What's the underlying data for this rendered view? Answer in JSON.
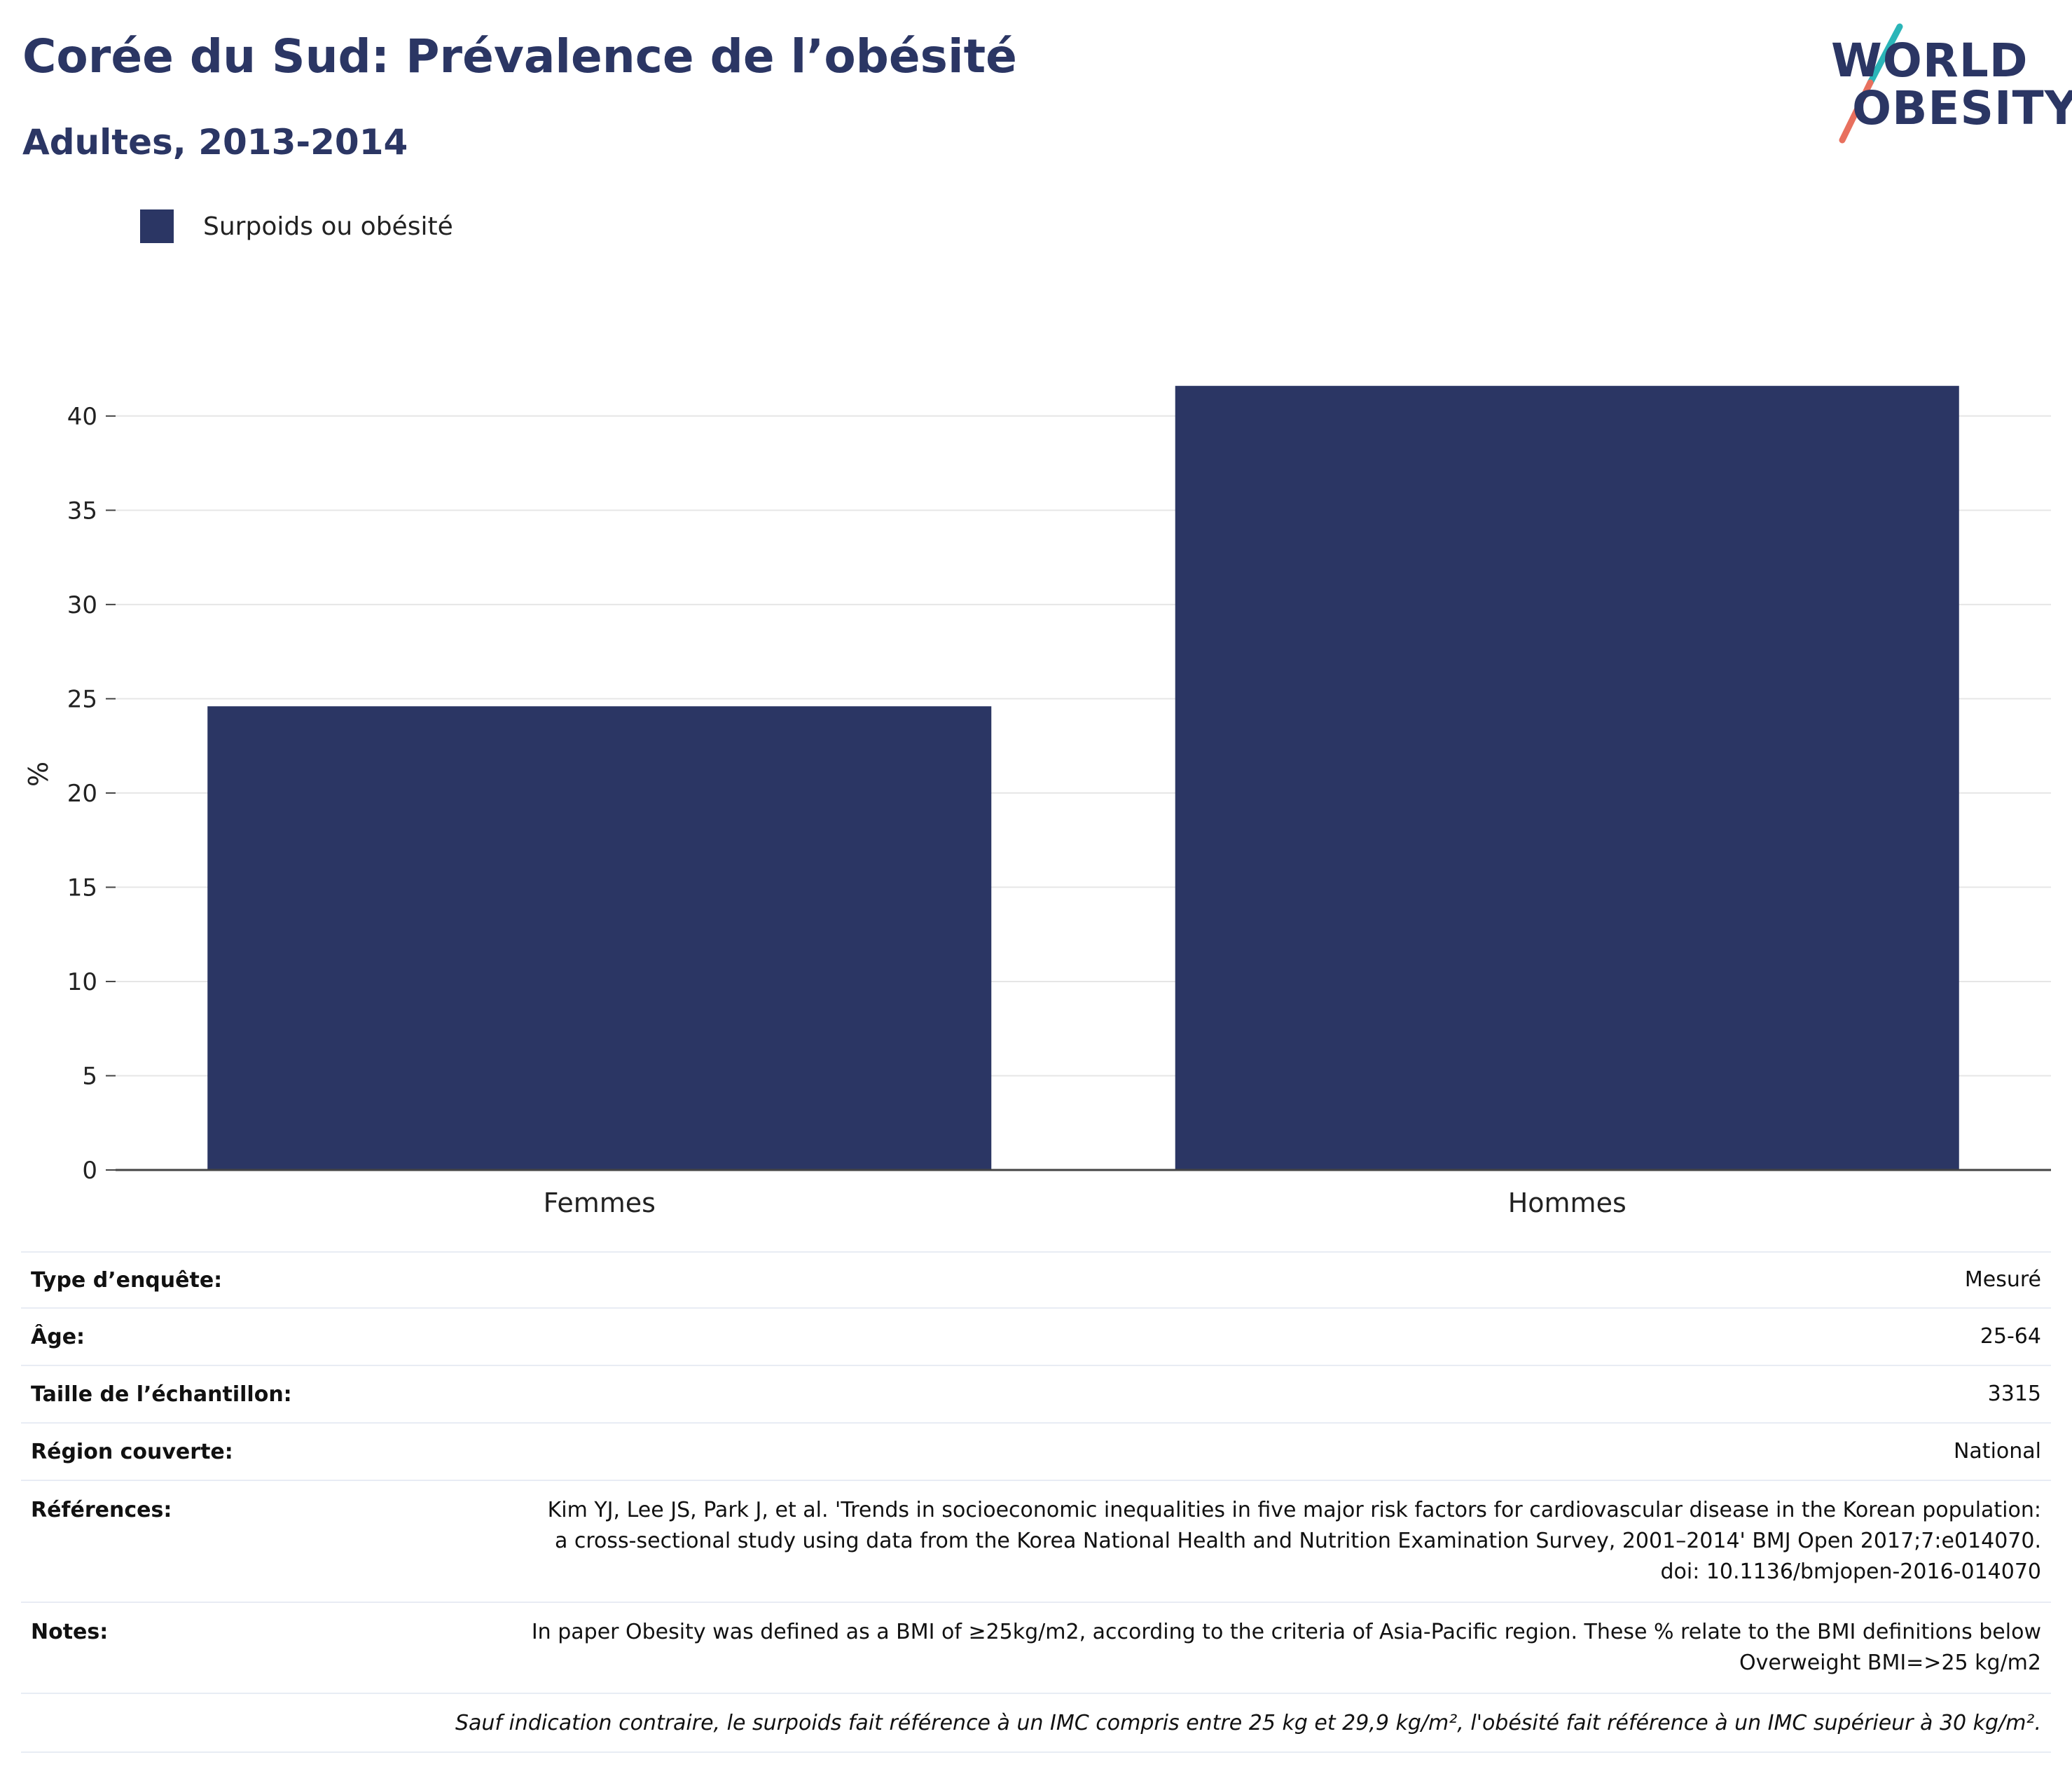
{
  "header": {
    "title": "Corée du Sud: Prévalence de l’obésité",
    "subtitle": "Adultes, 2013-2014"
  },
  "logo": {
    "line1": "WORLD",
    "line2": "OBESITY",
    "colors": {
      "text": "#2b3664",
      "slash_top": "#2bb5b8",
      "slash_bottom": "#e8705e"
    }
  },
  "colors": {
    "bar": "#2b3664",
    "grid": "#e6e6e6",
    "axis": "#444444",
    "text": "#2b3664"
  },
  "chart_data": {
    "type": "bar",
    "categories": [
      "Femmes",
      "Hommes"
    ],
    "series": [
      {
        "name": "Surpoids ou obésité",
        "values": [
          24.6,
          41.6
        ],
        "color": "#2b3664"
      }
    ],
    "ylabel": "%",
    "ylim": [
      0,
      42
    ],
    "yticks": [
      0,
      5,
      10,
      15,
      20,
      25,
      30,
      35,
      40
    ],
    "grid": true,
    "legend": "top-left"
  },
  "info": {
    "rows": [
      {
        "label": "Type d’enquête:",
        "value": "Mesuré"
      },
      {
        "label": "Âge:",
        "value": "25-64"
      },
      {
        "label": "Taille de l’échantillon:",
        "value": "3315"
      },
      {
        "label": "Région couverte:",
        "value": "National"
      }
    ],
    "references_label": "Références:",
    "references_value": "Kim YJ, Lee JS, Park J, et al. 'Trends in socioeconomic inequalities in five major risk factors for cardiovascular disease in the Korean population: a cross-sectional study using data from the Korea National Health and Nutrition Examination Survey, 2001–2014' BMJ Open 2017;7:e014070. doi: 10.1136/bmjopen-2016-014070",
    "notes_label": "Notes:",
    "notes_value": "In paper Obesity was defined as a BMI of ≥25kg/m2, according to the criteria of Asia-Pacific region. These % relate to the BMI definitions below Overweight BMI=>25 kg/m2",
    "footnote": "Sauf indication contraire, le surpoids fait référence à un IMC compris entre 25 kg et 29,9 kg/m², l'obésité fait référence à un IMC supérieur à 30 kg/m²."
  }
}
